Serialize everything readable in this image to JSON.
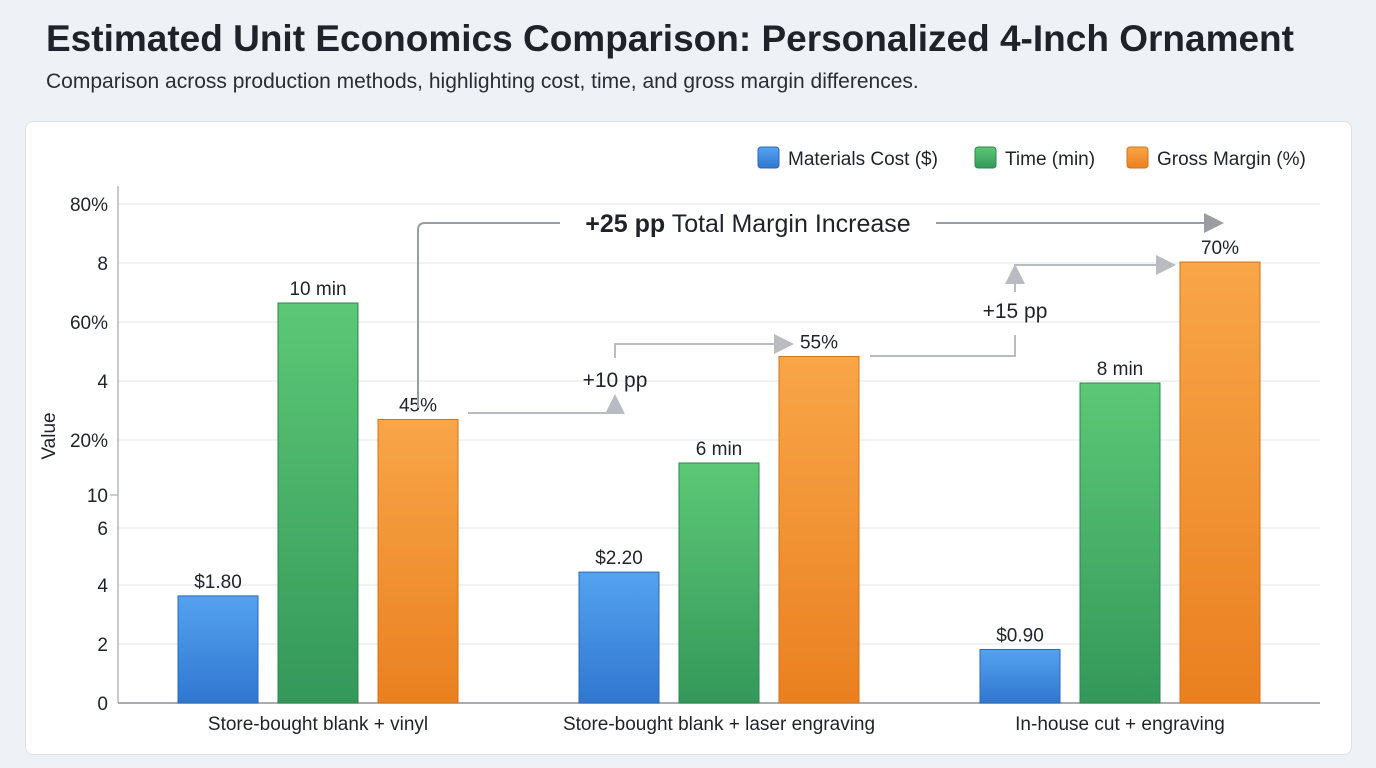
{
  "header": {
    "title": "Estimated Unit Economics Comparison: Personalized 4-Inch Ornament",
    "subtitle": "Comparison across production methods, highlighting cost, time, and gross margin differences."
  },
  "chart_data": {
    "type": "bar",
    "title": "Estimated Unit Economics Comparison: Personalized 4-Inch Ornament",
    "subtitle": "Comparison across production methods, highlighting cost, time, and gross margin differences.",
    "ylabel": "Value",
    "xlabel": "",
    "categories": [
      "Store-bought blank + vinyl",
      "Store-bought blank + laser engraving",
      "In-house cut + engraving"
    ],
    "y_tick_labels": [
      "0",
      "2",
      "4",
      "6",
      "10",
      "20%",
      "4",
      "60%",
      "8",
      "80%"
    ],
    "grid": true,
    "legend_position": "top-right",
    "series": [
      {
        "name": "Materials Cost ($)",
        "values": [
          1.8,
          2.2,
          0.9
        ],
        "labels": [
          "$1.80",
          "$2.20",
          "$0.90"
        ],
        "color": "#3d8be0"
      },
      {
        "name": "Time (min)",
        "values": [
          10,
          6,
          8
        ],
        "labels": [
          "10 min",
          "6 min",
          "8 min"
        ],
        "color": "#43b166"
      },
      {
        "name": "Gross Margin (%)",
        "values": [
          45,
          55,
          70
        ],
        "labels": [
          "45%",
          "55%",
          "70%"
        ],
        "color": "#f39633"
      }
    ],
    "annotations": {
      "total_bold": "+25 pp",
      "total_rest": " Total Margin Increase",
      "step1": "+10 pp",
      "step2": "+15 pp"
    }
  }
}
